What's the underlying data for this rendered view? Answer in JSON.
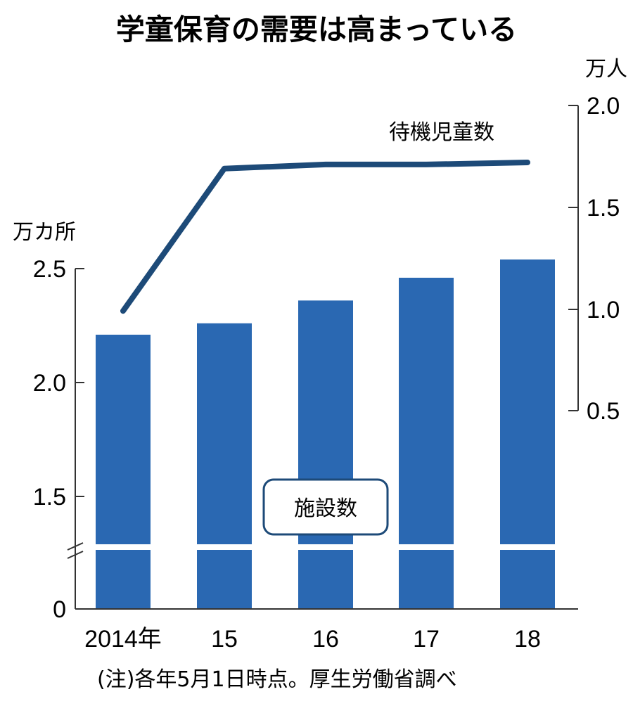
{
  "title": "学童保育の需要は高まっている",
  "note": "(注)各年5月1日時点。厚生労働省調べ",
  "chart_data": {
    "type": "bar",
    "categories": [
      "2014年",
      "15",
      "16",
      "17",
      "18"
    ],
    "series": [
      {
        "name": "施設数",
        "type": "bar",
        "axis": "left",
        "values": [
          2.21,
          2.26,
          2.36,
          2.46,
          2.54
        ]
      },
      {
        "name": "待機児童数",
        "type": "line",
        "axis": "right",
        "values": [
          0.99,
          1.69,
          1.71,
          1.71,
          1.72
        ]
      }
    ],
    "yaxis_left": {
      "unit": "万カ所",
      "ticks": [
        "0",
        "1.5",
        "2.0",
        "2.5"
      ],
      "broken": true
    },
    "yaxis_right": {
      "unit": "万人",
      "ticks": [
        "0.5",
        "1.0",
        "1.5",
        "2.0"
      ],
      "range": [
        0.5,
        2.0
      ]
    },
    "colors": {
      "bar": "#2a68b2",
      "line": "#1d4a78",
      "axis": "#333333"
    }
  }
}
